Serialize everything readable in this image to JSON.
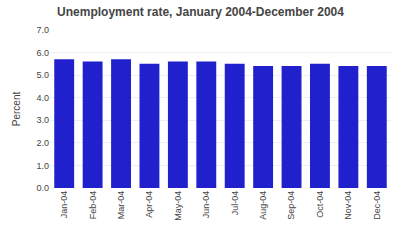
{
  "chart_data": {
    "type": "bar",
    "title": "Unemployment rate, January 2004-December 2004",
    "ylabel": "Percent",
    "categories": [
      "Jan-04",
      "Feb-04",
      "Mar-04",
      "Apr-04",
      "May-04",
      "Jun-04",
      "Jul-04",
      "Aug-04",
      "Sep-04",
      "Oct-04",
      "Nov-04",
      "Dec-04"
    ],
    "values": [
      5.7,
      5.6,
      5.7,
      5.5,
      5.6,
      5.6,
      5.5,
      5.4,
      5.4,
      5.5,
      5.4,
      5.4
    ],
    "color": "#2020cc",
    "ylim": [
      0.0,
      7.0
    ],
    "yticks": [
      {
        "value": 0.0,
        "label": "0.0"
      },
      {
        "value": 1.0,
        "label": "1.0"
      },
      {
        "value": 2.0,
        "label": "2.0"
      },
      {
        "value": 3.0,
        "label": "3.0"
      },
      {
        "value": 4.0,
        "label": "4.0"
      },
      {
        "value": 5.0,
        "label": "5.0"
      },
      {
        "value": 6.0,
        "label": "6.0"
      },
      {
        "value": 7.0,
        "label": "7.0"
      }
    ],
    "grid": true
  }
}
